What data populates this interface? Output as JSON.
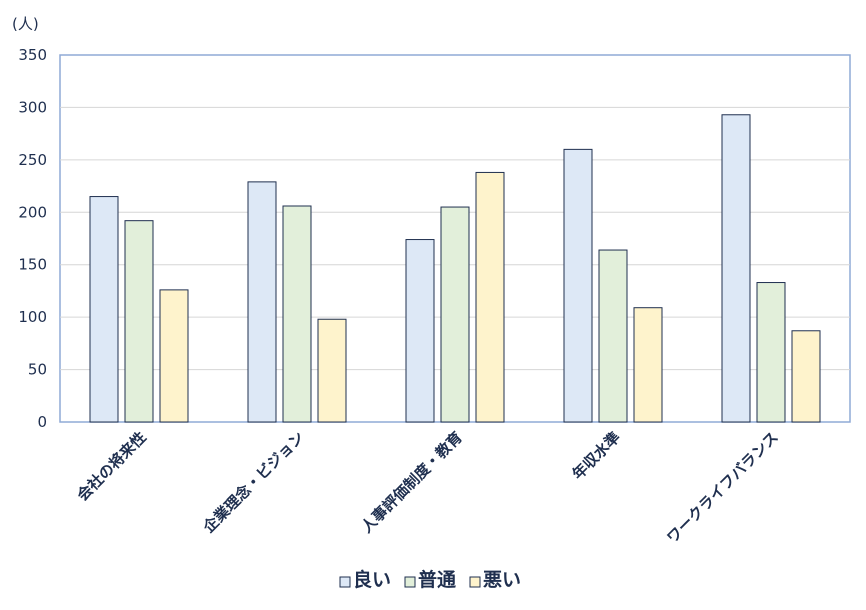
{
  "chart_data": {
    "type": "bar",
    "y_unit_label": "(人)",
    "categories": [
      "会社の将来性",
      "企業理念・ビジョン",
      "人事評価制度・教育",
      "年収水準",
      "ワークライフバランス"
    ],
    "series": [
      {
        "name": "良い",
        "color": "#dde8f6",
        "values": [
          215,
          229,
          174,
          260,
          293
        ]
      },
      {
        "name": "普通",
        "color": "#e2efda",
        "values": [
          192,
          206,
          205,
          164,
          133
        ]
      },
      {
        "name": "悪い",
        "color": "#fef3cc",
        "values": [
          126,
          98,
          238,
          109,
          87
        ]
      }
    ],
    "ylim": [
      0,
      350
    ],
    "yticks": [
      "0",
      "50",
      "100",
      "150",
      "200",
      "250",
      "300",
      "350"
    ],
    "grid": true,
    "legend_position": "bottom"
  }
}
